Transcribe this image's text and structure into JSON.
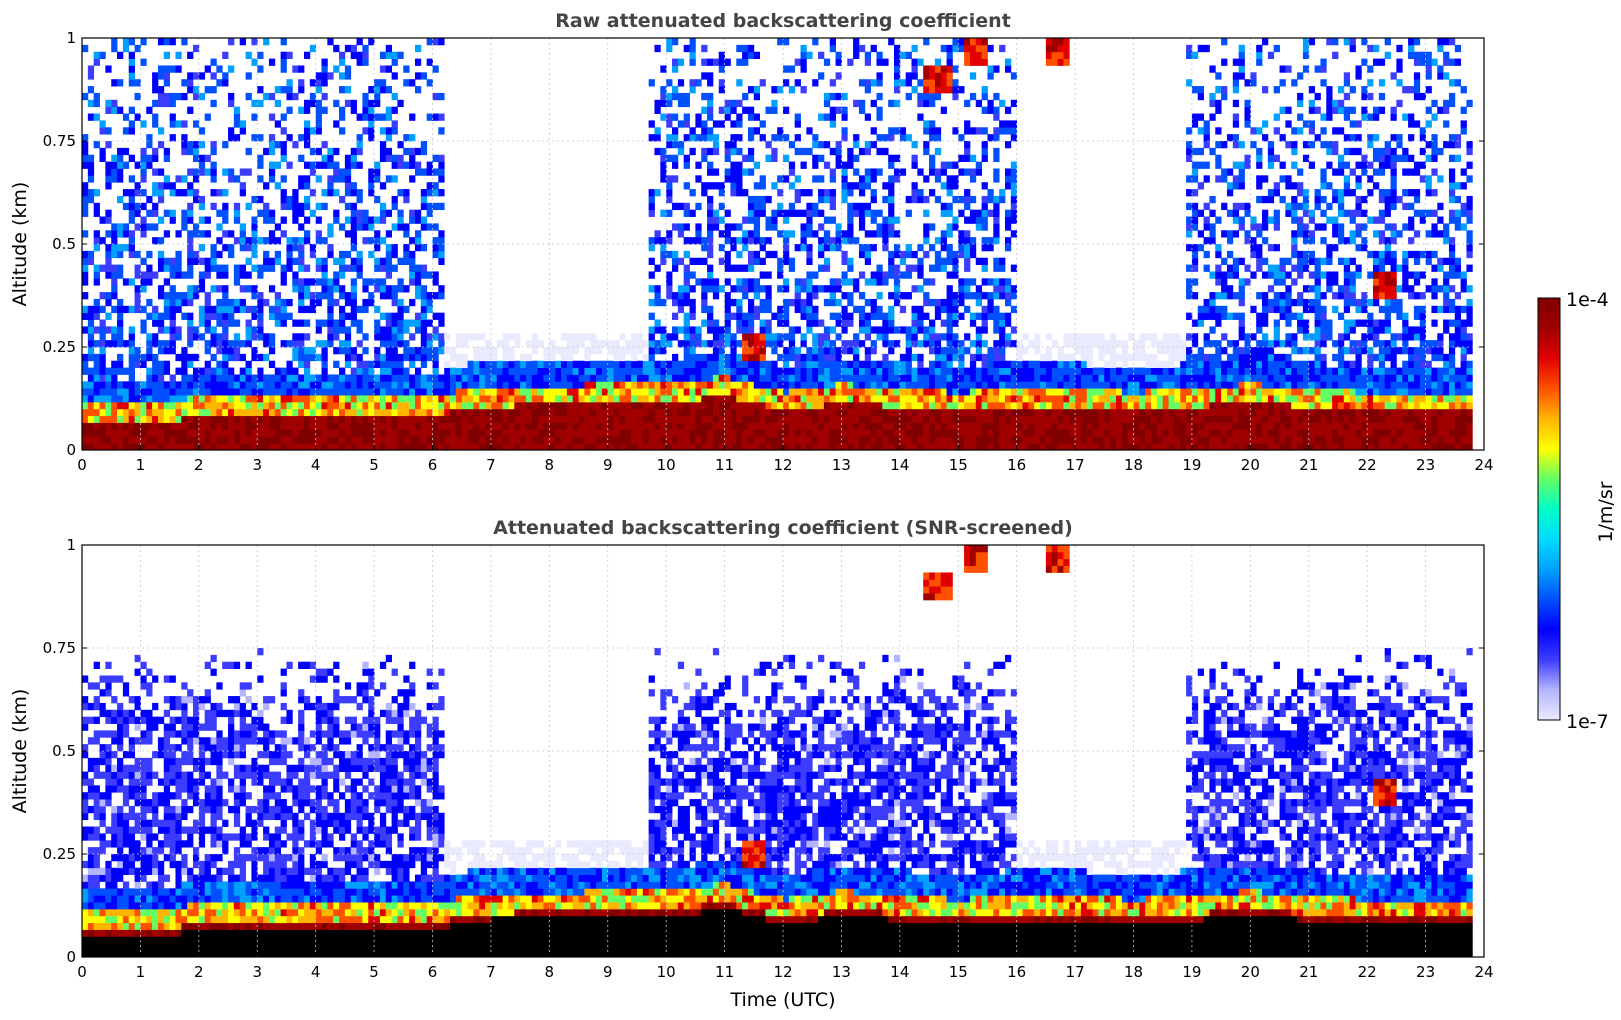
{
  "chart_data": [
    {
      "type": "heatmap",
      "title": "Raw attenuated backscattering coefficient",
      "xlabel": "",
      "ylabel": "Altitude (km)",
      "xlim": [
        0,
        24
      ],
      "ylim": [
        0,
        1
      ],
      "xticks": [
        "0",
        "1",
        "2",
        "3",
        "4",
        "5",
        "6",
        "7",
        "8",
        "9",
        "10",
        "11",
        "12",
        "13",
        "14",
        "15",
        "16",
        "17",
        "18",
        "19",
        "20",
        "21",
        "22",
        "23",
        "24"
      ],
      "yticks": [
        "0",
        "0.25",
        "0.5",
        "0.75",
        "1"
      ],
      "grid": true,
      "screened": false,
      "boundary_layer_top_km": [
        [
          0.0,
          0.09
        ],
        [
          1.7,
          0.09
        ],
        [
          1.8,
          0.11
        ],
        [
          6.2,
          0.11
        ],
        [
          6.6,
          0.13
        ],
        [
          9.0,
          0.14
        ],
        [
          9.8,
          0.14
        ],
        [
          10.3,
          0.14
        ],
        [
          11.0,
          0.16
        ],
        [
          12.0,
          0.12
        ],
        [
          13.0,
          0.14
        ],
        [
          14.0,
          0.13
        ],
        [
          15.0,
          0.12
        ],
        [
          16.0,
          0.13
        ],
        [
          17.0,
          0.13
        ],
        [
          18.0,
          0.12
        ],
        [
          19.0,
          0.13
        ],
        [
          20.0,
          0.14
        ],
        [
          21.0,
          0.13
        ],
        [
          22.0,
          0.12
        ],
        [
          23.0,
          0.12
        ],
        [
          23.7,
          0.12
        ]
      ],
      "clear_sky_periods": [
        [
          6.2,
          9.7
        ],
        [
          16.0,
          18.9
        ]
      ],
      "cloud_features": [
        {
          "time": 14.7,
          "altitude_km": 0.9
        },
        {
          "time": 15.3,
          "altitude_km": 0.98
        },
        {
          "time": 16.7,
          "altitude_km": 0.98
        },
        {
          "time": 11.5,
          "altitude_km": 0.25
        },
        {
          "time": 22.3,
          "altitude_km": 0.4
        }
      ]
    },
    {
      "type": "heatmap",
      "title": "Attenuated backscattering coefficient (SNR-screened)",
      "xlabel": "Time (UTC)",
      "ylabel": "Altitude (km)",
      "xlim": [
        0,
        24
      ],
      "ylim": [
        0,
        1
      ],
      "xticks": [
        "0",
        "1",
        "2",
        "3",
        "4",
        "5",
        "6",
        "7",
        "8",
        "9",
        "10",
        "11",
        "12",
        "13",
        "14",
        "15",
        "16",
        "17",
        "18",
        "19",
        "20",
        "21",
        "22",
        "23",
        "24"
      ],
      "yticks": [
        "0",
        "0.25",
        "0.5",
        "0.75",
        "1"
      ],
      "grid": true,
      "screened": true,
      "boundary_layer_top_km": [
        [
          0.0,
          0.09
        ],
        [
          1.7,
          0.09
        ],
        [
          1.8,
          0.11
        ],
        [
          6.2,
          0.11
        ],
        [
          6.6,
          0.13
        ],
        [
          9.0,
          0.14
        ],
        [
          9.8,
          0.14
        ],
        [
          10.3,
          0.14
        ],
        [
          11.0,
          0.16
        ],
        [
          12.0,
          0.12
        ],
        [
          13.0,
          0.14
        ],
        [
          14.0,
          0.13
        ],
        [
          15.0,
          0.12
        ],
        [
          16.0,
          0.13
        ],
        [
          17.0,
          0.13
        ],
        [
          18.0,
          0.12
        ],
        [
          19.0,
          0.13
        ],
        [
          20.0,
          0.14
        ],
        [
          21.0,
          0.13
        ],
        [
          22.0,
          0.12
        ],
        [
          23.0,
          0.12
        ],
        [
          23.7,
          0.12
        ]
      ],
      "clear_sky_periods": [
        [
          6.2,
          9.7
        ],
        [
          16.0,
          18.9
        ]
      ],
      "cloud_features": [
        {
          "time": 14.7,
          "altitude_km": 0.9
        },
        {
          "time": 15.3,
          "altitude_km": 0.98
        },
        {
          "time": 16.7,
          "altitude_km": 0.98
        },
        {
          "time": 11.5,
          "altitude_km": 0.25
        },
        {
          "time": 22.3,
          "altitude_km": 0.4
        }
      ]
    }
  ],
  "colorbar": {
    "min_label": "1e-7",
    "max_label": "1e-4",
    "unit": "1/m/sr",
    "colormap": [
      "#eaeaff",
      "#b4b4ff",
      "#3c3cff",
      "#0000ff",
      "#0050ff",
      "#00a0ff",
      "#00dcff",
      "#00ffc8",
      "#64ff64",
      "#ffff00",
      "#ffb400",
      "#ff5000",
      "#e00000",
      "#a00000",
      "#800000"
    ]
  },
  "colors": {
    "saturated": "#000000",
    "background": "#ffffff",
    "grid": "#c8c8c8"
  }
}
